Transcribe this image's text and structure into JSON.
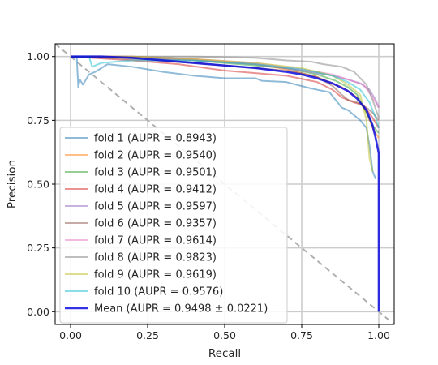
{
  "chart_data": {
    "type": "line",
    "title": "",
    "xlabel": "Recall",
    "ylabel": "Precision",
    "xlim": [
      -0.05,
      1.05
    ],
    "ylim": [
      -0.05,
      1.05
    ],
    "x_ticks": [
      0.0,
      0.25,
      0.5,
      0.75,
      1.0
    ],
    "y_ticks": [
      0.0,
      0.25,
      0.5,
      0.75,
      1.0
    ],
    "x_tick_labels": [
      "0.00",
      "0.25",
      "0.50",
      "0.75",
      "1.00"
    ],
    "y_tick_labels": [
      "0.00",
      "0.25",
      "0.50",
      "0.75",
      "1.00"
    ],
    "grid": true,
    "legend_position": "lower-left",
    "reference_line": {
      "points": [
        [
          -0.05,
          1.05
        ],
        [
          1.05,
          -0.05
        ]
      ],
      "color": "#b0b0b0",
      "style": "dashed"
    },
    "series": [
      {
        "name": "fold 1 (AUPR = 0.8943)",
        "color": "#1f77b4",
        "opacity": 0.5,
        "points": [
          [
            0,
            1
          ],
          [
            0.02,
            1
          ],
          [
            0.022,
            0.95
          ],
          [
            0.025,
            0.88
          ],
          [
            0.03,
            0.91
          ],
          [
            0.04,
            0.89
          ],
          [
            0.06,
            0.93
          ],
          [
            0.08,
            0.94
          ],
          [
            0.12,
            0.97
          ],
          [
            0.2,
            0.96
          ],
          [
            0.3,
            0.94
          ],
          [
            0.4,
            0.925
          ],
          [
            0.5,
            0.915
          ],
          [
            0.6,
            0.915
          ],
          [
            0.62,
            0.905
          ],
          [
            0.7,
            0.9
          ],
          [
            0.78,
            0.875
          ],
          [
            0.84,
            0.86
          ],
          [
            0.86,
            0.83
          ],
          [
            0.88,
            0.8
          ],
          [
            0.9,
            0.79
          ],
          [
            0.92,
            0.77
          ],
          [
            0.94,
            0.75
          ],
          [
            0.96,
            0.72
          ],
          [
            0.97,
            0.65
          ],
          [
            0.98,
            0.55
          ],
          [
            0.99,
            0.52
          ]
        ]
      },
      {
        "name": "fold 2 (AUPR = 0.9540)",
        "color": "#ff7f0e",
        "opacity": 0.5,
        "points": [
          [
            0,
            1
          ],
          [
            0.2,
            1
          ],
          [
            0.4,
            0.99
          ],
          [
            0.6,
            0.97
          ],
          [
            0.7,
            0.95
          ],
          [
            0.8,
            0.92
          ],
          [
            0.88,
            0.88
          ],
          [
            0.93,
            0.84
          ],
          [
            0.96,
            0.78
          ],
          [
            0.98,
            0.72
          ],
          [
            1.0,
            0.68
          ]
        ]
      },
      {
        "name": "fold 3 (AUPR = 0.9501)",
        "color": "#2ca02c",
        "opacity": 0.5,
        "points": [
          [
            0,
            1
          ],
          [
            0.2,
            0.995
          ],
          [
            0.4,
            0.985
          ],
          [
            0.6,
            0.965
          ],
          [
            0.7,
            0.955
          ],
          [
            0.8,
            0.93
          ],
          [
            0.86,
            0.905
          ],
          [
            0.9,
            0.88
          ],
          [
            0.93,
            0.85
          ],
          [
            0.96,
            0.78
          ],
          [
            0.98,
            0.73
          ],
          [
            1.0,
            0.7
          ]
        ]
      },
      {
        "name": "fold 4 (AUPR = 0.9412)",
        "color": "#d62728",
        "opacity": 0.5,
        "points": [
          [
            0,
            1
          ],
          [
            0.2,
            0.985
          ],
          [
            0.35,
            0.97
          ],
          [
            0.5,
            0.945
          ],
          [
            0.6,
            0.935
          ],
          [
            0.7,
            0.925
          ],
          [
            0.8,
            0.9
          ],
          [
            0.85,
            0.87
          ],
          [
            0.88,
            0.84
          ],
          [
            0.92,
            0.82
          ],
          [
            0.95,
            0.81
          ],
          [
            0.98,
            0.76
          ],
          [
            1.0,
            0.72
          ]
        ]
      },
      {
        "name": "fold 5 (AUPR = 0.9597)",
        "color": "#9467bd",
        "opacity": 0.5,
        "points": [
          [
            0,
            1
          ],
          [
            0.2,
            1
          ],
          [
            0.4,
            0.985
          ],
          [
            0.6,
            0.97
          ],
          [
            0.75,
            0.945
          ],
          [
            0.85,
            0.925
          ],
          [
            0.9,
            0.91
          ],
          [
            0.94,
            0.895
          ],
          [
            0.97,
            0.87
          ],
          [
            0.99,
            0.83
          ],
          [
            1.0,
            0.8
          ]
        ]
      },
      {
        "name": "fold 6 (AUPR = 0.9357)",
        "color": "#8c564b",
        "opacity": 0.5,
        "points": [
          [
            0,
            1
          ],
          [
            0.2,
            0.99
          ],
          [
            0.4,
            0.975
          ],
          [
            0.6,
            0.955
          ],
          [
            0.7,
            0.945
          ],
          [
            0.75,
            0.935
          ],
          [
            0.8,
            0.92
          ],
          [
            0.85,
            0.885
          ],
          [
            0.88,
            0.85
          ],
          [
            0.9,
            0.83
          ],
          [
            0.93,
            0.82
          ],
          [
            0.96,
            0.8
          ],
          [
            0.98,
            0.78
          ],
          [
            1.0,
            0.75
          ]
        ]
      },
      {
        "name": "fold 7 (AUPR = 0.9614)",
        "color": "#e377c2",
        "opacity": 0.5,
        "points": [
          [
            0,
            1
          ],
          [
            0.2,
            1
          ],
          [
            0.4,
            0.99
          ],
          [
            0.6,
            0.975
          ],
          [
            0.75,
            0.95
          ],
          [
            0.85,
            0.93
          ],
          [
            0.9,
            0.91
          ],
          [
            0.95,
            0.89
          ],
          [
            0.98,
            0.84
          ],
          [
            1.0,
            0.8
          ]
        ]
      },
      {
        "name": "fold 8 (AUPR = 0.9823)",
        "color": "#7f7f7f",
        "opacity": 0.5,
        "points": [
          [
            0,
            1
          ],
          [
            0.2,
            1
          ],
          [
            0.4,
            1
          ],
          [
            0.6,
            0.995
          ],
          [
            0.7,
            0.985
          ],
          [
            0.78,
            0.98
          ],
          [
            0.82,
            0.97
          ],
          [
            0.88,
            0.96
          ],
          [
            0.92,
            0.94
          ],
          [
            0.96,
            0.89
          ],
          [
            0.98,
            0.83
          ],
          [
            1.0,
            0.76
          ]
        ]
      },
      {
        "name": "fold 9 (AUPR = 0.9619)",
        "color": "#bcbd22",
        "opacity": 0.5,
        "points": [
          [
            0,
            1
          ],
          [
            0.2,
            1
          ],
          [
            0.4,
            0.99
          ],
          [
            0.6,
            0.975
          ],
          [
            0.75,
            0.955
          ],
          [
            0.85,
            0.925
          ],
          [
            0.9,
            0.89
          ],
          [
            0.94,
            0.85
          ],
          [
            0.96,
            0.75
          ],
          [
            0.97,
            0.6
          ],
          [
            0.98,
            0.55
          ]
        ]
      },
      {
        "name": "fold 10 (AUPR = 0.9576)",
        "color": "#17becf",
        "opacity": 0.5,
        "points": [
          [
            0,
            1
          ],
          [
            0.06,
            1
          ],
          [
            0.07,
            0.96
          ],
          [
            0.1,
            0.975
          ],
          [
            0.2,
            0.985
          ],
          [
            0.4,
            0.985
          ],
          [
            0.6,
            0.97
          ],
          [
            0.75,
            0.95
          ],
          [
            0.85,
            0.925
          ],
          [
            0.9,
            0.9
          ],
          [
            0.94,
            0.87
          ],
          [
            0.97,
            0.82
          ],
          [
            0.99,
            0.76
          ],
          [
            1.0,
            0.72
          ]
        ]
      },
      {
        "name": "Mean (AUPR = 0.9498 ± 0.0221)",
        "color": "#0000dd",
        "opacity": 0.8,
        "width": 2.6,
        "points": [
          [
            0,
            1
          ],
          [
            0.1,
            1
          ],
          [
            0.2,
            0.995
          ],
          [
            0.3,
            0.985
          ],
          [
            0.4,
            0.975
          ],
          [
            0.5,
            0.965
          ],
          [
            0.6,
            0.955
          ],
          [
            0.7,
            0.94
          ],
          [
            0.75,
            0.93
          ],
          [
            0.8,
            0.915
          ],
          [
            0.85,
            0.895
          ],
          [
            0.9,
            0.865
          ],
          [
            0.93,
            0.835
          ],
          [
            0.96,
            0.79
          ],
          [
            0.98,
            0.73
          ],
          [
            0.99,
            0.68
          ],
          [
            1.0,
            0.62
          ],
          [
            1.0,
            0.5
          ],
          [
            1.0,
            0.25
          ],
          [
            1.0,
            0.0
          ]
        ]
      }
    ]
  }
}
